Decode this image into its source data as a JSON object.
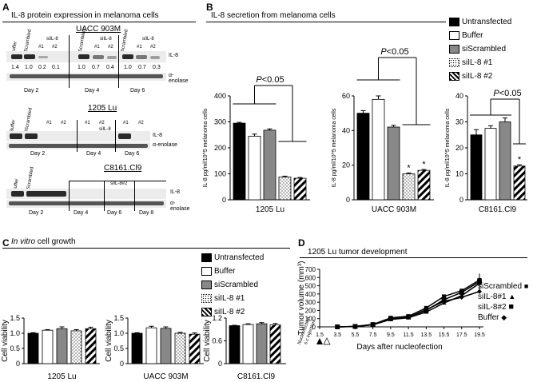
{
  "panel_labels": {
    "a": "A",
    "b": "B",
    "c": "C",
    "d": "D"
  },
  "panel_a": {
    "title": "IL-8 protein expression in melanoma cells",
    "blot1": {
      "cell_line": "UACC 903M",
      "col_buffer": "Buffer",
      "col_siscr": "siScrambled",
      "group_label": "siIL-8",
      "n1": "#1",
      "n2": "#2",
      "quant": [
        "1.4",
        "1.0",
        "0.2",
        "0.1",
        "1.0",
        "0.7",
        "0.4",
        "1.0",
        "0.7",
        "0.3"
      ],
      "il8": "IL-8",
      "enolase": "α-enolase",
      "day2": "Day 2",
      "day4": "Day 4",
      "day6": "Day 6"
    },
    "blot2": {
      "cell_line": "1205 Lu",
      "col_buffer": "Buffer",
      "col_siscr": "siScrambled",
      "group_label": "siIL-8",
      "n1": "#1",
      "n2": "#2",
      "il8": "IL-8",
      "enolase": "α-enolase",
      "day2": "Day 2",
      "day4": "Day 4",
      "day6": "Day 6"
    },
    "blot3": {
      "cell_line": "C8161.Cl9",
      "col_buffer": "Buffer",
      "col_siscr": "siScrambled",
      "group_label": "siIL-8#2",
      "il8": "IL-8",
      "enolase": "α-enolase",
      "day2": "Day 2",
      "day4": "Day 4",
      "day6": "Day 6",
      "day8": "Day 8"
    }
  },
  "panel_b": {
    "title": "IL-8 secretion from melanoma cells",
    "sig": "P<0.05",
    "star": "*"
  },
  "panel_c": {
    "title_italic": "In vitro",
    "title_rest": " cell growth"
  },
  "legend_bc": {
    "items": [
      {
        "label": "Untransfected"
      },
      {
        "label": "Buffer"
      },
      {
        "label": "siScrambled"
      },
      {
        "label": "siIL-8 #1"
      },
      {
        "label": "siIL-8 #2"
      }
    ]
  },
  "panel_d": {
    "title": "1205 Lu tumor development",
    "legend": [
      {
        "label": "siScrambled",
        "marker": "■"
      },
      {
        "label": "siIL-8#1",
        "marker": "▲"
      },
      {
        "label": "siIL-8#2",
        "marker": "■"
      },
      {
        "label": "Buffer",
        "marker": "◆"
      }
    ],
    "annot1": "Nucleofection",
    "annot2": "s.c injection"
  },
  "colors": {
    "untransfected": "#000000",
    "buffer": "#ffffff",
    "siscrambled": "#888888",
    "axis": "#000000"
  },
  "chart_data": [
    {
      "id": "b1",
      "type": "bar",
      "title": "",
      "ylabel": "IL-8 pg/ml/10^5 melanoma cells",
      "xlabel": "1205  Lu",
      "ylim": [
        0,
        400
      ],
      "yticks": [
        0,
        100,
        200,
        300,
        400
      ],
      "categories": [
        "Untransfected",
        "Buffer",
        "siScrambled",
        "siIL-8 #1",
        "siIL-8 #2"
      ],
      "values": [
        295,
        245,
        268,
        88,
        83
      ],
      "errors": [
        3,
        8,
        5,
        3,
        3
      ],
      "stars": [
        false,
        false,
        false,
        false,
        false
      ]
    },
    {
      "id": "b2",
      "type": "bar",
      "title": "",
      "ylabel": "IL-8 pg/ml/10^5 melanoma cells",
      "xlabel": "UACC   903M",
      "ylim": [
        0,
        60
      ],
      "yticks": [
        0,
        20,
        40,
        60
      ],
      "categories": [
        "Untransfected",
        "Buffer",
        "siScrambled",
        "siIL-8 #1",
        "siIL-8 #2"
      ],
      "values": [
        50,
        58,
        42,
        15,
        17
      ],
      "errors": [
        1.5,
        2,
        1,
        0.5,
        0.5
      ],
      "stars": [
        false,
        false,
        false,
        true,
        true
      ]
    },
    {
      "id": "b3",
      "type": "bar",
      "title": "",
      "ylabel": "IL-8 pg/ml/10^5 melanoma cells",
      "xlabel": "C8161.Cl9",
      "ylim": [
        0,
        40
      ],
      "yticks": [
        0,
        10,
        20,
        30,
        40
      ],
      "categories": [
        "Untransfected",
        "Buffer",
        "siScrambled",
        "siIL-8 #2"
      ],
      "values": [
        25,
        27.5,
        30,
        13
      ],
      "errors": [
        2,
        1,
        1.5,
        0.5
      ],
      "stars": [
        false,
        false,
        false,
        true
      ]
    },
    {
      "id": "c1",
      "type": "bar",
      "title": "",
      "ylabel": "Cell viability",
      "xlabel": "1205 Lu",
      "ylim": [
        0,
        1.5
      ],
      "yticks": [
        0,
        0.5,
        1.0,
        1.5
      ],
      "yticklabels": [
        "0",
        "0.5",
        "1.0",
        "1.5"
      ],
      "categories": [
        "Untransfected",
        "Buffer",
        "siScrambled",
        "siIL-8 #1",
        "siIL-8 #2"
      ],
      "values": [
        1.0,
        1.1,
        1.15,
        1.08,
        1.15
      ],
      "errors": [
        0.02,
        0.02,
        0.06,
        0.04,
        0.05
      ],
      "stars": [
        false,
        false,
        false,
        false,
        false
      ]
    },
    {
      "id": "c2",
      "type": "bar",
      "title": "",
      "ylabel": "Cell viability",
      "xlabel": "UACC 903M",
      "ylim": [
        0,
        1.5
      ],
      "yticks": [
        0,
        0.5,
        1.0,
        1.5
      ],
      "yticklabels": [
        "0",
        "0.5",
        "1.0",
        "1.5"
      ],
      "categories": [
        "Untransfected",
        "Buffer",
        "siScrambled",
        "siIL-8 #1",
        "siIL-8 #2"
      ],
      "values": [
        1.0,
        1.18,
        1.16,
        1.0,
        0.97
      ],
      "errors": [
        0.02,
        0.05,
        0.05,
        0.03,
        0.04
      ],
      "stars": [
        false,
        false,
        false,
        false,
        false
      ]
    },
    {
      "id": "c3",
      "type": "bar",
      "title": "",
      "ylabel": "Cell viability",
      "xlabel": "C8161.Cl9",
      "ylim": [
        0,
        1.2
      ],
      "yticks": [
        0,
        0.6,
        1.2
      ],
      "yticklabels": [
        "0",
        "0.6",
        "1.2"
      ],
      "categories": [
        "Untransfected",
        "Buffer",
        "siScrambled",
        "siIL-8 #2"
      ],
      "values": [
        1.0,
        1.03,
        1.05,
        1.02
      ],
      "errors": [
        0.01,
        0.02,
        0.03,
        0.04
      ],
      "stars": [
        false,
        false,
        false,
        false
      ]
    },
    {
      "id": "d1",
      "type": "line",
      "title": "1205 Lu tumor development",
      "xlabel": "Days after nucleofection",
      "ylabel": "Tumor volume (mm3)",
      "ylim": [
        0,
        700
      ],
      "yticks": [
        0,
        100,
        200,
        300,
        400,
        500,
        600,
        700
      ],
      "x": [
        1.5,
        3.5,
        5.5,
        7.5,
        9.5,
        11.5,
        13.5,
        15.5,
        17.5,
        19.5
      ],
      "xticklabels": [
        "1.5",
        "3.5",
        "5.5",
        "7.5",
        "9.5",
        "11.5",
        "13.5",
        "15.5",
        "17.5",
        "19.5"
      ],
      "series": [
        {
          "name": "siScrambled",
          "x": [
            3.5,
            5.5,
            7.5,
            9.5,
            11.5,
            13.5,
            15.5,
            17.5,
            19.5
          ],
          "values": [
            0,
            5,
            30,
            110,
            130,
            230,
            370,
            440,
            570
          ]
        },
        {
          "name": "siIL-8#1",
          "x": [
            3.5,
            5.5,
            7.5,
            9.5,
            11.5,
            13.5,
            15.5,
            17.5,
            19.5
          ],
          "values": [
            0,
            5,
            25,
            90,
            110,
            180,
            290,
            380,
            530
          ]
        },
        {
          "name": "siIL-8#2",
          "x": [
            3.5,
            5.5,
            7.5,
            9.5,
            11.5,
            13.5,
            15.5,
            17.5,
            19.5
          ],
          "values": [
            0,
            5,
            28,
            100,
            120,
            200,
            330,
            420,
            550
          ]
        },
        {
          "name": "Buffer",
          "x": [
            3.5,
            5.5,
            7.5,
            9.5,
            11.5,
            13.5,
            15.5,
            17.5,
            19.5
          ],
          "values": [
            0,
            4,
            25,
            95,
            115,
            210,
            310,
            360,
            430
          ]
        }
      ]
    }
  ]
}
